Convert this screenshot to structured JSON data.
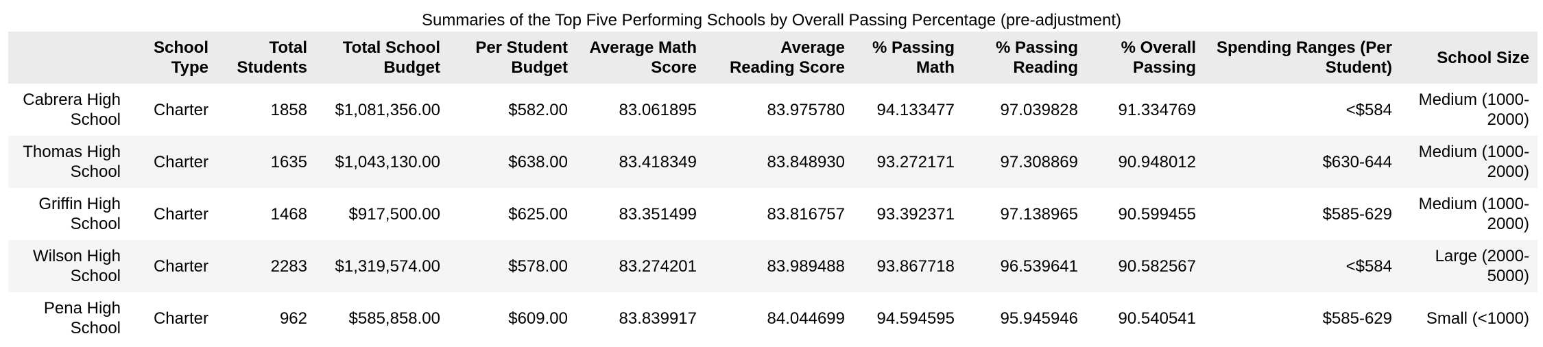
{
  "table": {
    "caption": "Summaries of the Top Five Performing Schools by Overall Passing Percentage (pre-adjustment)",
    "columns": [
      "",
      "School Type",
      "Total Students",
      "Total School Budget",
      "Per Student Budget",
      "Average Math Score",
      "Average Reading Score",
      "% Passing Math",
      "% Passing Reading",
      "% Overall Passing",
      "Spending Ranges (Per Student)",
      "School Size"
    ],
    "rows": [
      [
        "Cabrera High School",
        "Charter",
        "1858",
        "$1,081,356.00",
        "$582.00",
        "83.061895",
        "83.975780",
        "94.133477",
        "97.039828",
        "91.334769",
        "<$584",
        "Medium (1000-2000)"
      ],
      [
        "Thomas High School",
        "Charter",
        "1635",
        "$1,043,130.00",
        "$638.00",
        "83.418349",
        "83.848930",
        "93.272171",
        "97.308869",
        "90.948012",
        "$630-644",
        "Medium (1000-2000)"
      ],
      [
        "Griffin High School",
        "Charter",
        "1468",
        "$917,500.00",
        "$625.00",
        "83.351499",
        "83.816757",
        "93.392371",
        "97.138965",
        "90.599455",
        "$585-629",
        "Medium (1000-2000)"
      ],
      [
        "Wilson High School",
        "Charter",
        "2283",
        "$1,319,574.00",
        "$578.00",
        "83.274201",
        "83.989488",
        "93.867718",
        "96.539641",
        "90.582567",
        "<$584",
        "Large (2000-5000)"
      ],
      [
        "Pena High School",
        "Charter",
        "962",
        "$585,858.00",
        "$609.00",
        "83.839917",
        "84.044699",
        "94.594595",
        "95.945946",
        "90.540541",
        "$585-629",
        "Small (<1000)"
      ]
    ]
  }
}
